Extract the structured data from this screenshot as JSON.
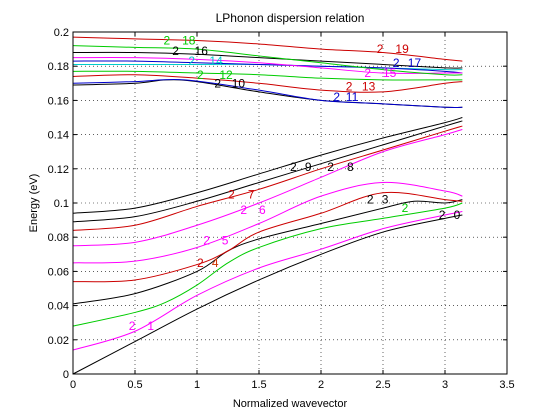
{
  "chart_data": {
    "type": "line",
    "title": "LPhonon dispersion relation",
    "xlabel": "Normalized wavevector",
    "ylabel": "Energy (eV)",
    "xlim": [
      0,
      3.5
    ],
    "ylim": [
      0,
      0.2
    ],
    "xticks": [
      0,
      0.5,
      1,
      1.5,
      2,
      2.5,
      3,
      3.5
    ],
    "xtick_labels": [
      "0",
      "0.5",
      "1",
      "1.5",
      "2",
      "2.5",
      "3",
      "3.5"
    ],
    "yticks": [
      0,
      0.02,
      0.04,
      0.06,
      0.08,
      0.1,
      0.12,
      0.14,
      0.16,
      0.18,
      0.2
    ],
    "ytick_labels": [
      "0",
      "0.02",
      "0.04",
      "0.06",
      "0.08",
      "0.1",
      "0.12",
      "0.14",
      "0.16",
      "0.18",
      "0.2"
    ],
    "grid": true,
    "series": [
      {
        "color": "#000000",
        "points": [
          [
            0,
            0
          ],
          [
            0.5,
            0.019
          ],
          [
            1,
            0.038
          ],
          [
            1.5,
            0.055
          ],
          [
            2,
            0.07
          ],
          [
            2.5,
            0.083
          ],
          [
            3,
            0.091
          ],
          [
            3.14,
            0.093
          ]
        ]
      },
      {
        "color": "#ff00ff",
        "points": [
          [
            0,
            0.014
          ],
          [
            0.5,
            0.025
          ],
          [
            1,
            0.046
          ],
          [
            1.5,
            0.062
          ],
          [
            2,
            0.073
          ],
          [
            2.5,
            0.085
          ],
          [
            3,
            0.093
          ],
          [
            3.14,
            0.095
          ]
        ]
      },
      {
        "color": "#00cc00",
        "points": [
          [
            0,
            0.028
          ],
          [
            0.5,
            0.036
          ],
          [
            0.75,
            0.042
          ],
          [
            1,
            0.052
          ],
          [
            1.25,
            0.065
          ],
          [
            1.5,
            0.074
          ],
          [
            2,
            0.085
          ],
          [
            2.5,
            0.091
          ],
          [
            3,
            0.097
          ],
          [
            3.14,
            0.1
          ]
        ]
      },
      {
        "color": "#000000",
        "points": [
          [
            0,
            0.041
          ],
          [
            0.5,
            0.047
          ],
          [
            1,
            0.06
          ],
          [
            1.25,
            0.072
          ],
          [
            1.5,
            0.079
          ],
          [
            2,
            0.088
          ],
          [
            2.5,
            0.097
          ],
          [
            2.75,
            0.101
          ],
          [
            3,
            0.1
          ],
          [
            3.14,
            0.102
          ]
        ]
      },
      {
        "color": "#cc0000",
        "points": [
          [
            0,
            0.054
          ],
          [
            0.5,
            0.055
          ],
          [
            1,
            0.064
          ],
          [
            1.25,
            0.072
          ],
          [
            1.5,
            0.083
          ],
          [
            2,
            0.094
          ],
          [
            2.5,
            0.106
          ],
          [
            3,
            0.102
          ],
          [
            3.14,
            0.101
          ]
        ]
      },
      {
        "color": "#ff00ff",
        "points": [
          [
            0,
            0.065
          ],
          [
            0.5,
            0.066
          ],
          [
            1,
            0.074
          ],
          [
            1.5,
            0.088
          ],
          [
            2,
            0.104
          ],
          [
            2.5,
            0.112
          ],
          [
            3,
            0.107
          ],
          [
            3.14,
            0.104
          ]
        ]
      },
      {
        "color": "#ff00ff",
        "points": [
          [
            0,
            0.075
          ],
          [
            0.5,
            0.077
          ],
          [
            1,
            0.087
          ],
          [
            1.5,
            0.1
          ],
          [
            2,
            0.115
          ],
          [
            2.5,
            0.13
          ],
          [
            3,
            0.14
          ],
          [
            3.14,
            0.143
          ]
        ]
      },
      {
        "color": "#cc0000",
        "points": [
          [
            0,
            0.084
          ],
          [
            0.5,
            0.087
          ],
          [
            1,
            0.098
          ],
          [
            1.5,
            0.108
          ],
          [
            2,
            0.12
          ],
          [
            2.5,
            0.131
          ],
          [
            3,
            0.142
          ],
          [
            3.14,
            0.145
          ]
        ]
      },
      {
        "color": "#000000",
        "points": [
          [
            0,
            0.089
          ],
          [
            0.5,
            0.092
          ],
          [
            1,
            0.101
          ],
          [
            1.5,
            0.112
          ],
          [
            2,
            0.123
          ],
          [
            2.5,
            0.134
          ],
          [
            3,
            0.145
          ],
          [
            3.14,
            0.148
          ]
        ]
      },
      {
        "color": "#000000",
        "points": [
          [
            0,
            0.094
          ],
          [
            0.5,
            0.097
          ],
          [
            1,
            0.106
          ],
          [
            1.5,
            0.117
          ],
          [
            2,
            0.128
          ],
          [
            2.5,
            0.138
          ],
          [
            3,
            0.147
          ],
          [
            3.14,
            0.15
          ]
        ]
      },
      {
        "color": "#000000",
        "points": [
          [
            0,
            0.169
          ],
          [
            0.5,
            0.17
          ],
          [
            0.75,
            0.172
          ],
          [
            1,
            0.171
          ],
          [
            1.5,
            0.165
          ],
          [
            2,
            0.16
          ],
          [
            2.5,
            0.158
          ],
          [
            3,
            0.156
          ],
          [
            3.14,
            0.156
          ]
        ]
      },
      {
        "color": "#0000cc",
        "points": [
          [
            0,
            0.17
          ],
          [
            0.5,
            0.171
          ],
          [
            0.9,
            0.172
          ],
          [
            1.5,
            0.166
          ],
          [
            2,
            0.16
          ],
          [
            2.5,
            0.158
          ],
          [
            3,
            0.156
          ],
          [
            3.14,
            0.156
          ]
        ]
      },
      {
        "color": "#cc0000",
        "points": [
          [
            0,
            0.174
          ],
          [
            0.5,
            0.175
          ],
          [
            1,
            0.173
          ],
          [
            1.5,
            0.17
          ],
          [
            2,
            0.166
          ],
          [
            2.5,
            0.165
          ],
          [
            3,
            0.17
          ],
          [
            3.14,
            0.171
          ]
        ]
      },
      {
        "color": "#00cc00",
        "points": [
          [
            0,
            0.177
          ],
          [
            0.5,
            0.177
          ],
          [
            1,
            0.176
          ],
          [
            1.5,
            0.175
          ],
          [
            2,
            0.173
          ],
          [
            2.5,
            0.172
          ],
          [
            3,
            0.172
          ],
          [
            3.14,
            0.172
          ]
        ]
      },
      {
        "color": "#00cccc",
        "points": [
          [
            0,
            0.181
          ],
          [
            0.5,
            0.181
          ],
          [
            1,
            0.181
          ],
          [
            1.5,
            0.181
          ],
          [
            2,
            0.18
          ],
          [
            2.5,
            0.179
          ],
          [
            3,
            0.178
          ],
          [
            3.14,
            0.178
          ]
        ]
      },
      {
        "color": "#0000cc",
        "points": [
          [
            0,
            0.183
          ],
          [
            0.5,
            0.183
          ],
          [
            1,
            0.182
          ],
          [
            1.5,
            0.181
          ],
          [
            2,
            0.18
          ],
          [
            2.5,
            0.179
          ],
          [
            3,
            0.177
          ],
          [
            3.14,
            0.176
          ]
        ]
      },
      {
        "color": "#ff00ff",
        "points": [
          [
            0,
            0.185
          ],
          [
            0.5,
            0.185
          ],
          [
            1,
            0.184
          ],
          [
            1.5,
            0.182
          ],
          [
            2,
            0.179
          ],
          [
            2.5,
            0.176
          ],
          [
            3,
            0.176
          ],
          [
            3.14,
            0.176
          ]
        ]
      },
      {
        "color": "#000000",
        "points": [
          [
            0,
            0.188
          ],
          [
            0.5,
            0.188
          ],
          [
            1,
            0.187
          ],
          [
            1.5,
            0.185
          ],
          [
            2,
            0.183
          ],
          [
            2.5,
            0.181
          ],
          [
            3,
            0.179
          ],
          [
            3.14,
            0.179
          ]
        ]
      },
      {
        "color": "#00cc00",
        "points": [
          [
            0,
            0.192
          ],
          [
            0.5,
            0.191
          ],
          [
            1,
            0.19
          ],
          [
            1.5,
            0.186
          ],
          [
            2,
            0.182
          ],
          [
            2.5,
            0.178
          ],
          [
            3,
            0.175
          ],
          [
            3.14,
            0.175
          ]
        ]
      },
      {
        "color": "#cc0000",
        "points": [
          [
            0,
            0.197
          ],
          [
            0.5,
            0.196
          ],
          [
            1,
            0.195
          ],
          [
            1.5,
            0.193
          ],
          [
            2,
            0.19
          ],
          [
            2.5,
            0.188
          ],
          [
            3,
            0.184
          ],
          [
            3.14,
            0.183
          ]
        ]
      }
    ],
    "annotations": [
      {
        "text": "2",
        "x": 2.95,
        "y": 0.093,
        "color": "#000000"
      },
      {
        "text": "0",
        "x": 3.07,
        "y": 0.093,
        "color": "#000000"
      },
      {
        "text": "2",
        "x": 0.45,
        "y": 0.028,
        "color": "#ff00ff"
      },
      {
        "text": "1",
        "x": 0.6,
        "y": 0.028,
        "color": "#ff00ff"
      },
      {
        "text": "2",
        "x": 2.65,
        "y": 0.097,
        "color": "#00cc00"
      },
      {
        "text": "2",
        "x": 2.37,
        "y": 0.102,
        "color": "#000000"
      },
      {
        "text": "3",
        "x": 2.49,
        "y": 0.102,
        "color": "#000000"
      },
      {
        "text": "2",
        "x": 1.0,
        "y": 0.065,
        "color": "#cc0000"
      },
      {
        "text": "4",
        "x": 1.12,
        "y": 0.065,
        "color": "#cc3300"
      },
      {
        "text": "2",
        "x": 1.05,
        "y": 0.078,
        "color": "#ff00ff"
      },
      {
        "text": "5",
        "x": 1.2,
        "y": 0.078,
        "color": "#ff00ff"
      },
      {
        "text": "2",
        "x": 1.35,
        "y": 0.096,
        "color": "#ff00ff"
      },
      {
        "text": "6",
        "x": 1.5,
        "y": 0.096,
        "color": "#ff00ff"
      },
      {
        "text": "2",
        "x": 1.25,
        "y": 0.105,
        "color": "#cc0000"
      },
      {
        "text": "7",
        "x": 1.41,
        "y": 0.105,
        "color": "#cc0000"
      },
      {
        "text": "2",
        "x": 1.75,
        "y": 0.121,
        "color": "#000000"
      },
      {
        "text": "9",
        "x": 1.87,
        "y": 0.121,
        "color": "#000000"
      },
      {
        "text": "2",
        "x": 2.05,
        "y": 0.121,
        "color": "#000000"
      },
      {
        "text": "8",
        "x": 2.21,
        "y": 0.121,
        "color": "#000000"
      },
      {
        "text": "2",
        "x": 1.14,
        "y": 0.17,
        "color": "#000000"
      },
      {
        "text": "10",
        "x": 1.28,
        "y": 0.17,
        "color": "#000000"
      },
      {
        "text": "2",
        "x": 2.1,
        "y": 0.162,
        "color": "#0000cc"
      },
      {
        "text": "11",
        "x": 2.2,
        "y": 0.162,
        "color": "#0000cc"
      },
      {
        "text": "2",
        "x": 2.2,
        "y": 0.168,
        "color": "#cc0000"
      },
      {
        "text": "13",
        "x": 2.33,
        "y": 0.168,
        "color": "#cc0000"
      },
      {
        "text": "2",
        "x": 1.0,
        "y": 0.175,
        "color": "#00cc00"
      },
      {
        "text": "12",
        "x": 1.18,
        "y": 0.175,
        "color": "#00cc00"
      },
      {
        "text": "2",
        "x": 0.93,
        "y": 0.183,
        "color": "#00cccc"
      },
      {
        "text": "14",
        "x": 1.1,
        "y": 0.183,
        "color": "#00cccc"
      },
      {
        "text": "2",
        "x": 2.35,
        "y": 0.176,
        "color": "#ff00ff"
      },
      {
        "text": "15",
        "x": 2.5,
        "y": 0.176,
        "color": "#ff00ff"
      },
      {
        "text": "2",
        "x": 0.8,
        "y": 0.189,
        "color": "#000000"
      },
      {
        "text": "16",
        "x": 0.98,
        "y": 0.189,
        "color": "#000000"
      },
      {
        "text": "2",
        "x": 2.58,
        "y": 0.182,
        "color": "#0000cc"
      },
      {
        "text": "17",
        "x": 2.7,
        "y": 0.182,
        "color": "#0000cc"
      },
      {
        "text": "2",
        "x": 0.73,
        "y": 0.195,
        "color": "#00cc00"
      },
      {
        "text": "18",
        "x": 0.88,
        "y": 0.195,
        "color": "#00cc00"
      },
      {
        "text": "2",
        "x": 2.45,
        "y": 0.19,
        "color": "#cc0000"
      },
      {
        "text": "19",
        "x": 2.6,
        "y": 0.19,
        "color": "#cc0000"
      }
    ]
  }
}
